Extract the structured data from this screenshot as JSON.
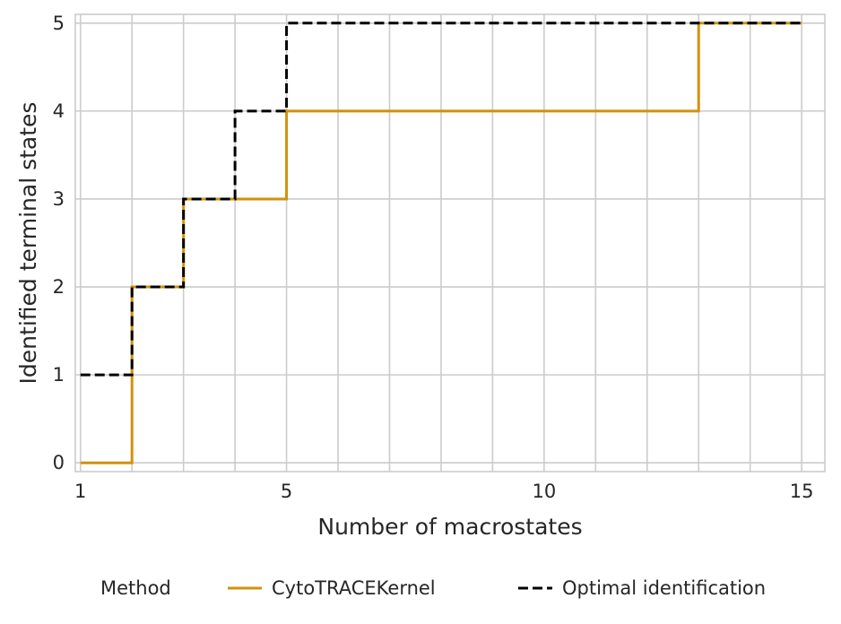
{
  "chart_data": {
    "type": "line",
    "step": "post",
    "xlabel": "Number of macrostates",
    "ylabel": "Identified terminal states",
    "xlim": [
      0.9,
      15.45
    ],
    "ylim": [
      -0.1,
      5.1
    ],
    "xticks": [
      1,
      5,
      10,
      15
    ],
    "yticks": [
      0,
      1,
      2,
      3,
      4,
      5
    ],
    "grid": true,
    "x": [
      1,
      2,
      3,
      4,
      5,
      6,
      7,
      8,
      9,
      10,
      11,
      12,
      13,
      14,
      15
    ],
    "legend": {
      "title": "Method",
      "placement": "bottom-center"
    },
    "series": [
      {
        "name": "CytoTRACEKernel",
        "color": "#d4900d",
        "style": "solid",
        "values": [
          0,
          2,
          3,
          3,
          4,
          4,
          4,
          4,
          4,
          4,
          4,
          4,
          5,
          5,
          5
        ]
      },
      {
        "name": "Optimal identification",
        "color": "#000000",
        "style": "dashed",
        "values": [
          1,
          2,
          3,
          4,
          5,
          5,
          5,
          5,
          5,
          5,
          5,
          5,
          5,
          5,
          5
        ]
      }
    ]
  }
}
